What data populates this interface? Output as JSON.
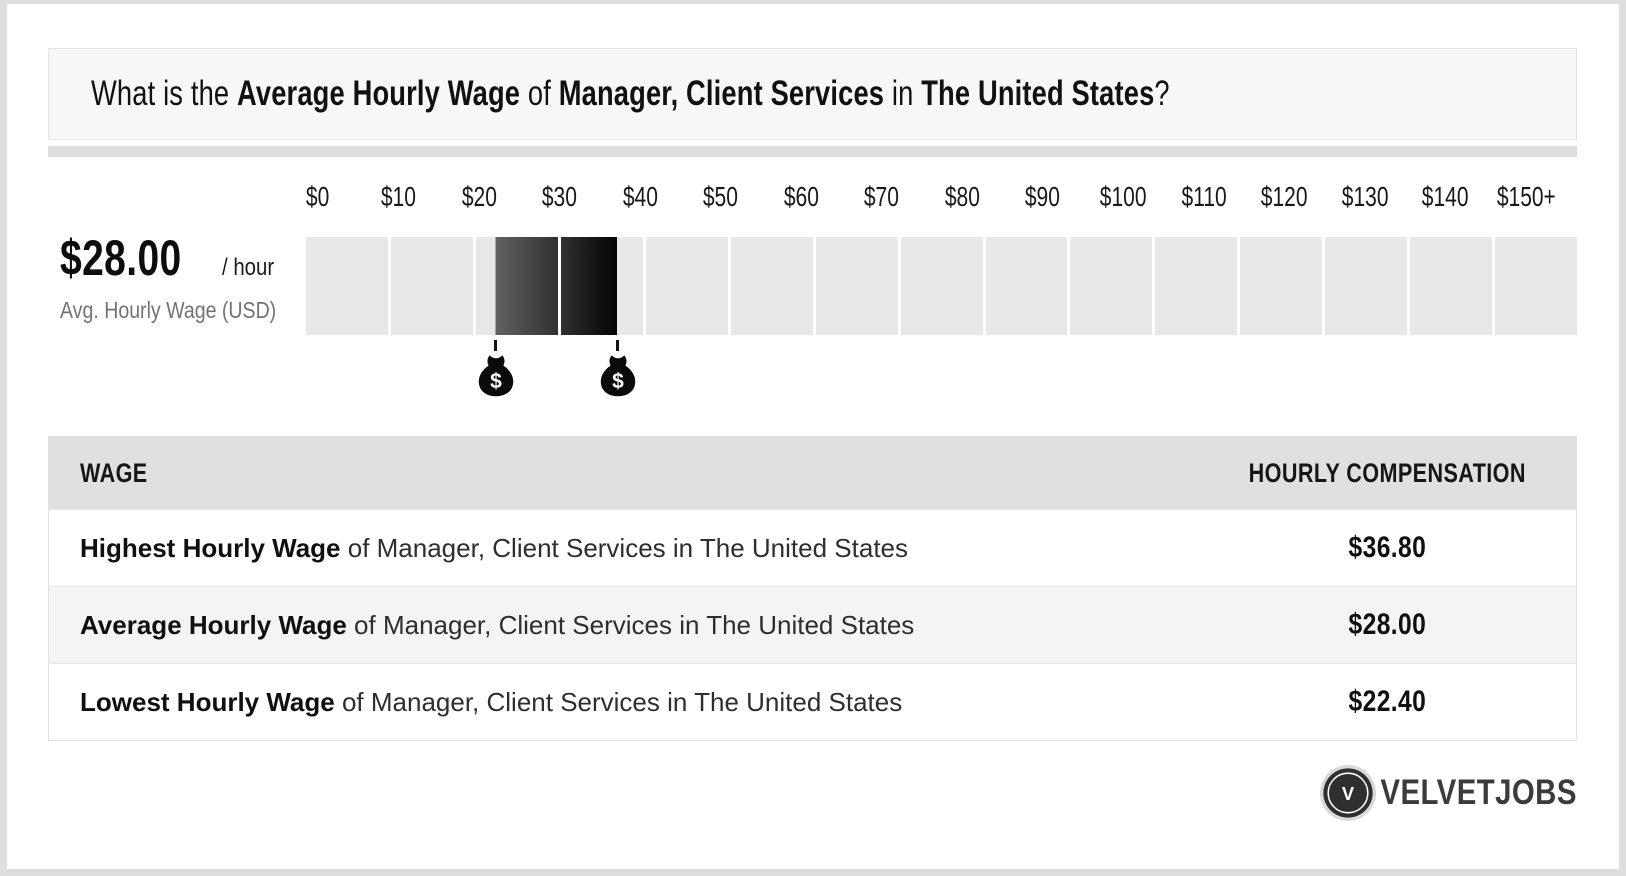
{
  "page": {
    "title_parts": [
      {
        "text": "What is the ",
        "bold": false
      },
      {
        "text": "Average Hourly Wage",
        "bold": true
      },
      {
        "text": " of ",
        "bold": false
      },
      {
        "text": "Manager, Client Services",
        "bold": true
      },
      {
        "text": " in ",
        "bold": false
      },
      {
        "text": "The United States",
        "bold": true
      },
      {
        "text": "?",
        "bold": false
      }
    ]
  },
  "wage_summary": {
    "amount": "$28.00",
    "per": "/ hour",
    "caption": "Avg. Hourly Wage (USD)"
  },
  "chart_data": {
    "type": "bar",
    "subtype": "wage-range-scale",
    "title": "Hourly wage range scale in USD",
    "ticks": [
      "$0",
      "$10",
      "$20",
      "$30",
      "$40",
      "$50",
      "$60",
      "$70",
      "$80",
      "$90",
      "$100",
      "$110",
      "$120",
      "$130",
      "$140",
      "$150+"
    ],
    "axis_min": 0,
    "axis_max": 150,
    "segment_value": 10,
    "segment_count": 15,
    "lowest_wage": 22.4,
    "average_wage": 28.0,
    "highest_wage": 36.8,
    "highlight": {
      "from": 22.4,
      "to": 36.8
    },
    "markers": [
      {
        "icon": "money-bag-icon",
        "value": 22.4,
        "glyph": "$"
      },
      {
        "icon": "money-bag-icon",
        "value": 36.8,
        "glyph": "$"
      }
    ],
    "colors": {
      "track": "#e8e8e8",
      "highlight_start": "#626262",
      "highlight_end": "#040404"
    }
  },
  "table": {
    "headers": [
      "WAGE",
      "HOURLY COMPENSATION"
    ],
    "rows": [
      {
        "label_bold": "Highest Hourly Wage",
        "label_rest": " of Manager, Client Services in The United States",
        "value": "$36.80"
      },
      {
        "label_bold": "Average Hourly Wage",
        "label_rest": " of Manager, Client Services in The United States",
        "value": "$28.00"
      },
      {
        "label_bold": "Lowest Hourly Wage",
        "label_rest": " of Manager, Client Services in The United States",
        "value": "$22.40"
      }
    ]
  },
  "footer": {
    "brand": "VELVETJOBS",
    "brand_monogram": "V"
  }
}
